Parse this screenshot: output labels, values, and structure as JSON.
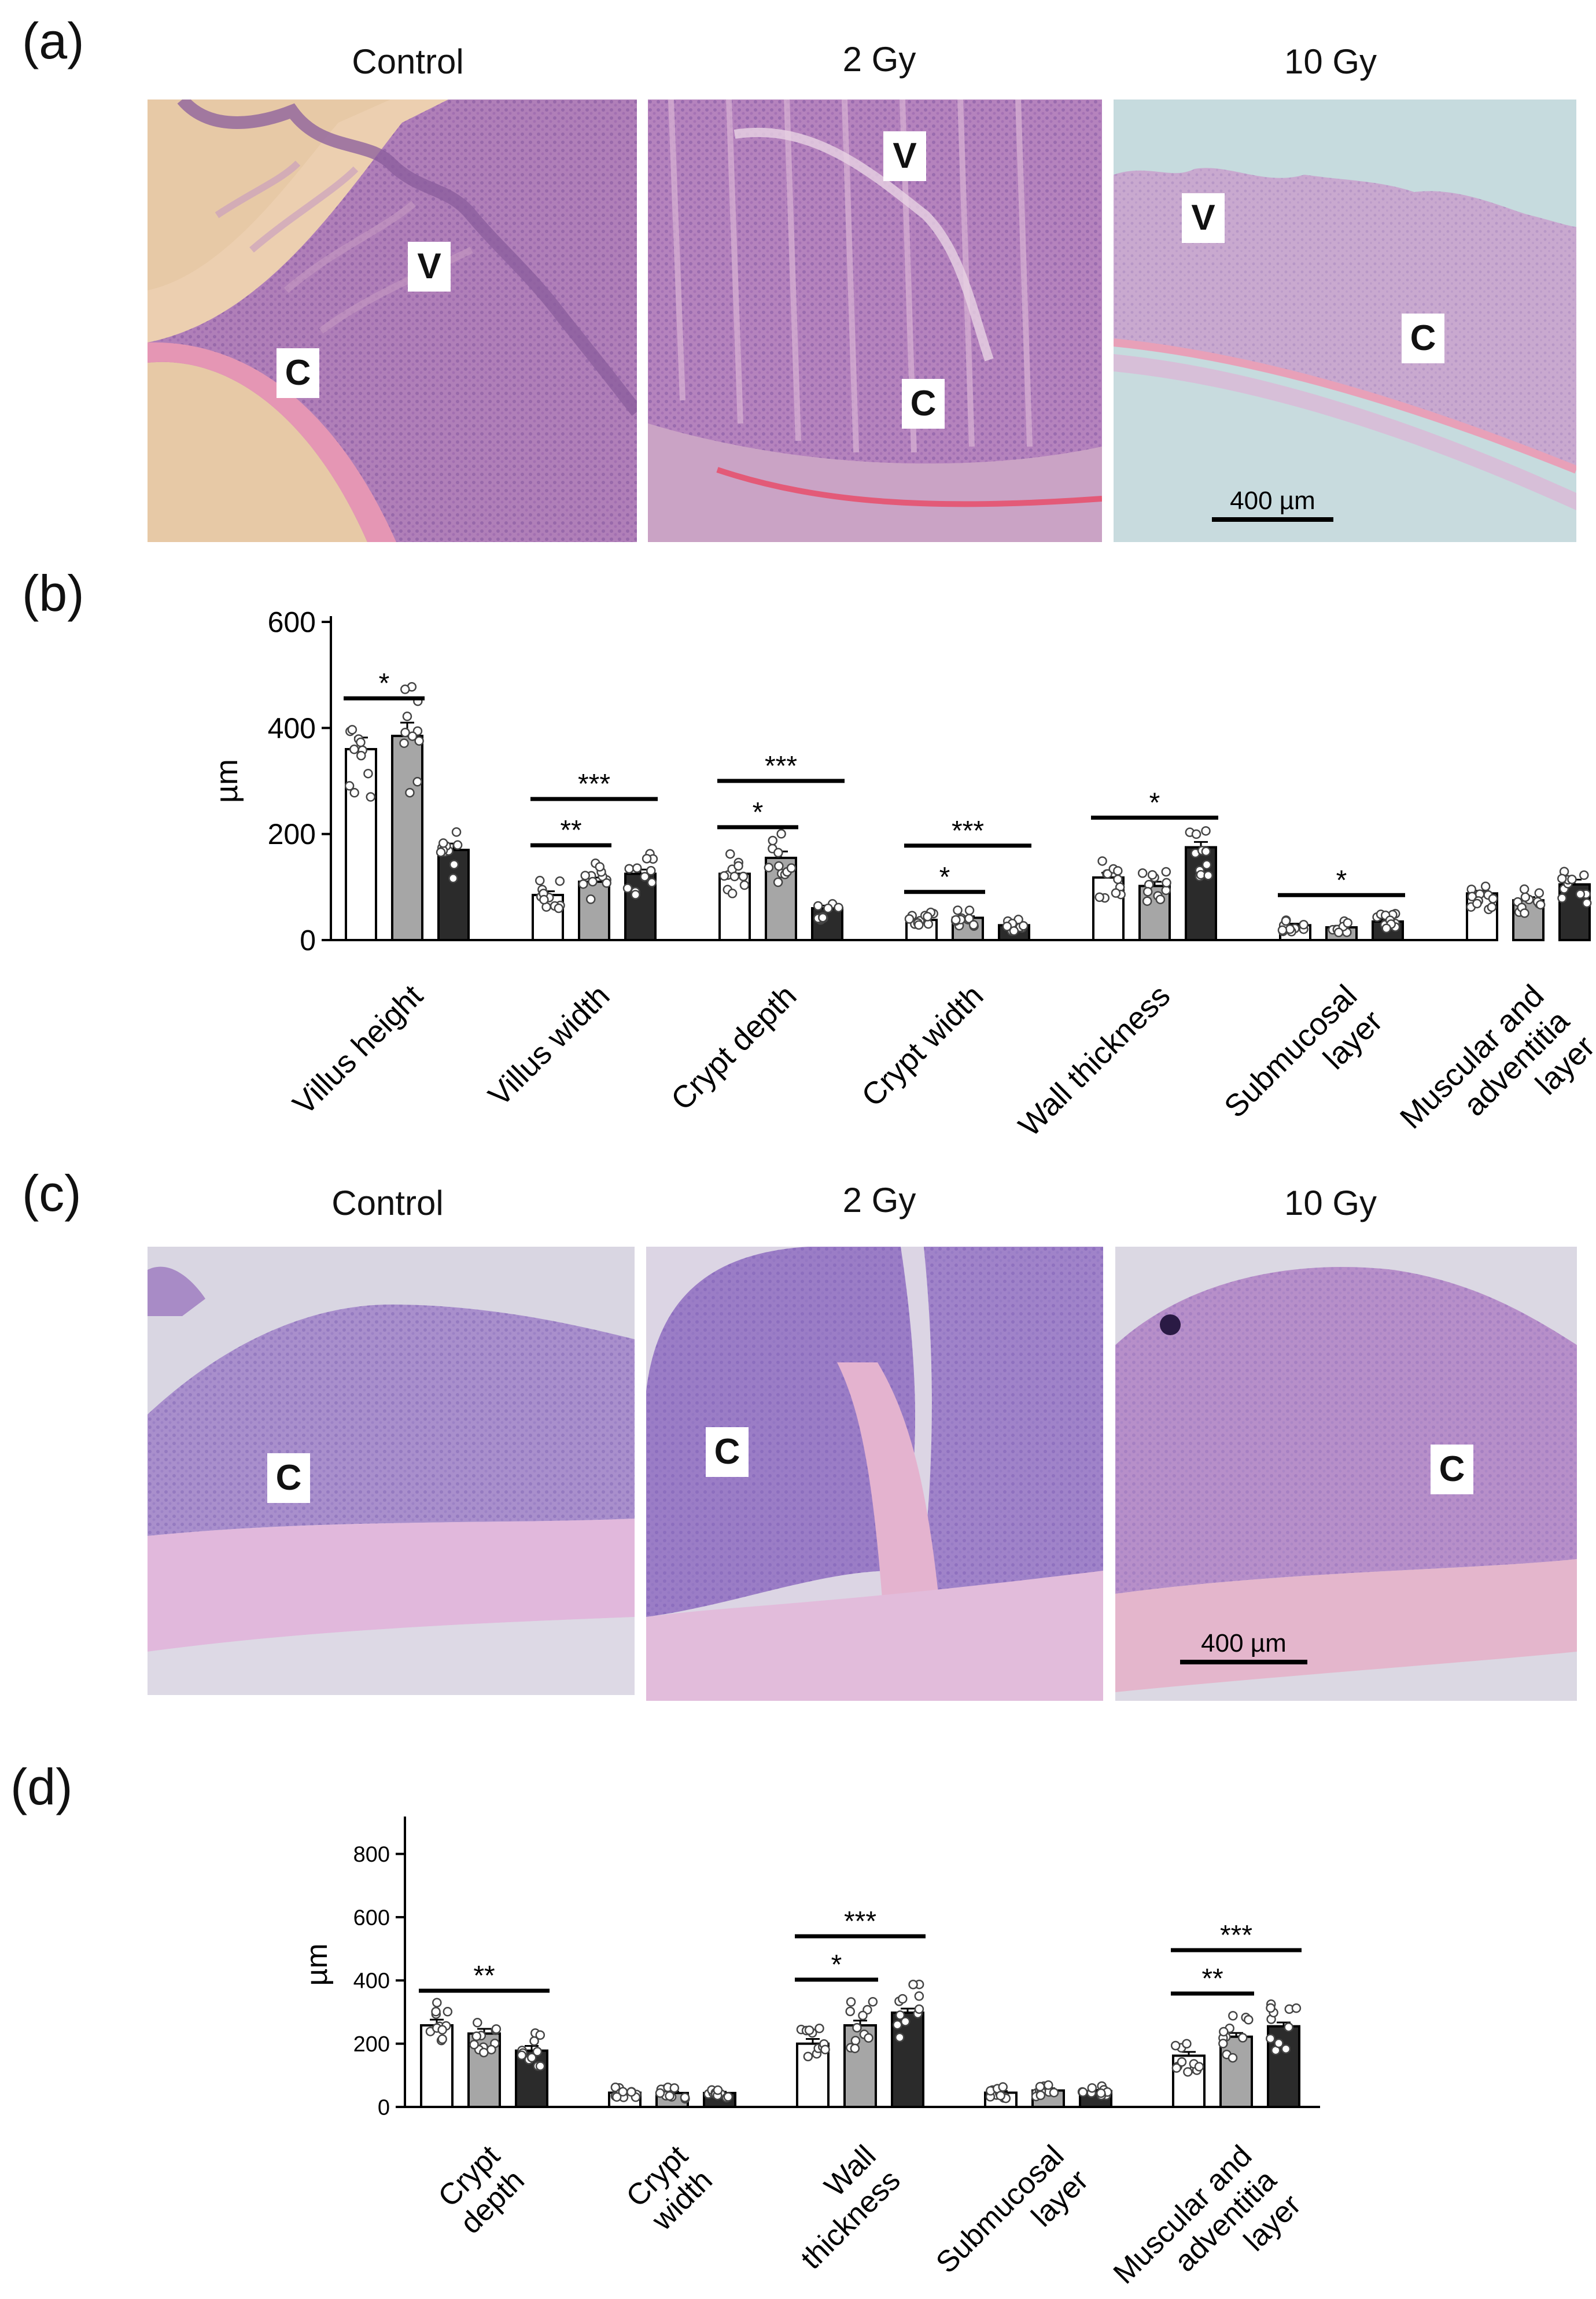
{
  "panels": {
    "a": {
      "letter": "(a)",
      "titles": [
        "Control",
        "2 Gy",
        "10 Gy"
      ],
      "labels": [
        "V",
        "C",
        "V",
        "C",
        "V",
        "C"
      ],
      "scale": "400 µm"
    },
    "b": {
      "letter": "(b)"
    },
    "c": {
      "letter": "(c)",
      "titles": [
        "Control",
        "2 Gy",
        "10 Gy"
      ],
      "labels": [
        "C",
        "C",
        "C"
      ],
      "scale": "400 µm"
    },
    "d": {
      "letter": "(d)"
    }
  },
  "colors": {
    "control": "#ffffff",
    "gy2": "#a6a6a6",
    "gy10": "#2b2b2b"
  },
  "chart_data": [
    {
      "type": "bar",
      "panel": "b",
      "ylabel": "µm",
      "ylim": [
        0,
        600
      ],
      "yticks": [
        0,
        200,
        400,
        600
      ],
      "categories": [
        "Villus height",
        "Villus width",
        "Crypt depth",
        "Crypt width",
        "Wall thickness",
        "Submucosal\nlayer",
        "Muscular and\nadventitia\nlayer"
      ],
      "series": [
        {
          "values": [
            360,
            85,
            125,
            38,
            118,
            28,
            88
          ],
          "errors": [
            22,
            7,
            10,
            3,
            9,
            3,
            5
          ]
        },
        {
          "values": [
            385,
            110,
            155,
            42,
            102,
            24,
            75
          ],
          "errors": [
            25,
            8,
            12,
            3,
            8,
            3,
            6
          ]
        },
        {
          "values": [
            170,
            125,
            60,
            28,
            175,
            35,
            105
          ],
          "errors": [
            12,
            8,
            5,
            3,
            10,
            4,
            9
          ]
        }
      ],
      "significance": [
        {
          "group": 0,
          "from": 0,
          "to": 1,
          "label": "*"
        },
        {
          "group": 1,
          "from": 0,
          "to": 1,
          "label": "**"
        },
        {
          "group": 1,
          "from": 0,
          "to": 2,
          "label": "***"
        },
        {
          "group": 2,
          "from": 0,
          "to": 1,
          "label": "*"
        },
        {
          "group": 2,
          "from": 0,
          "to": 2,
          "label": "***"
        },
        {
          "group": 3,
          "from": 0,
          "to": 1,
          "label": "*"
        },
        {
          "group": 3,
          "from": 0,
          "to": 2,
          "label": "***"
        },
        {
          "group": 4,
          "from": 0,
          "to": 2,
          "label": "*"
        },
        {
          "group": 5,
          "from": 0,
          "to": 2,
          "label": "*"
        }
      ]
    },
    {
      "type": "bar",
      "panel": "d",
      "ylabel": "µm",
      "ylim": [
        0,
        900
      ],
      "yticks": [
        0,
        200,
        400,
        600,
        800
      ],
      "categories": [
        "Crypt\ndepth",
        "Crypt\nwidth",
        "Wall\nthickness",
        "Submucosal\nlayer",
        "Muscular and\nadventitia\nlayer"
      ],
      "series": [
        {
          "values": [
            258,
            45,
            200,
            45,
            162
          ],
          "errors": [
            18,
            4,
            15,
            5,
            12
          ]
        },
        {
          "values": [
            232,
            44,
            258,
            52,
            222
          ],
          "errors": [
            15,
            4,
            15,
            7,
            12
          ]
        },
        {
          "values": [
            178,
            44,
            298,
            50,
            255
          ],
          "errors": [
            15,
            4,
            13,
            4,
            12
          ]
        }
      ],
      "significance": [
        {
          "group": 0,
          "from": 0,
          "to": 2,
          "label": "**"
        },
        {
          "group": 2,
          "from": 0,
          "to": 1,
          "label": "*"
        },
        {
          "group": 2,
          "from": 0,
          "to": 2,
          "label": "***"
        },
        {
          "group": 4,
          "from": 0,
          "to": 1,
          "label": "**"
        },
        {
          "group": 4,
          "from": 0,
          "to": 2,
          "label": "***"
        }
      ]
    }
  ]
}
